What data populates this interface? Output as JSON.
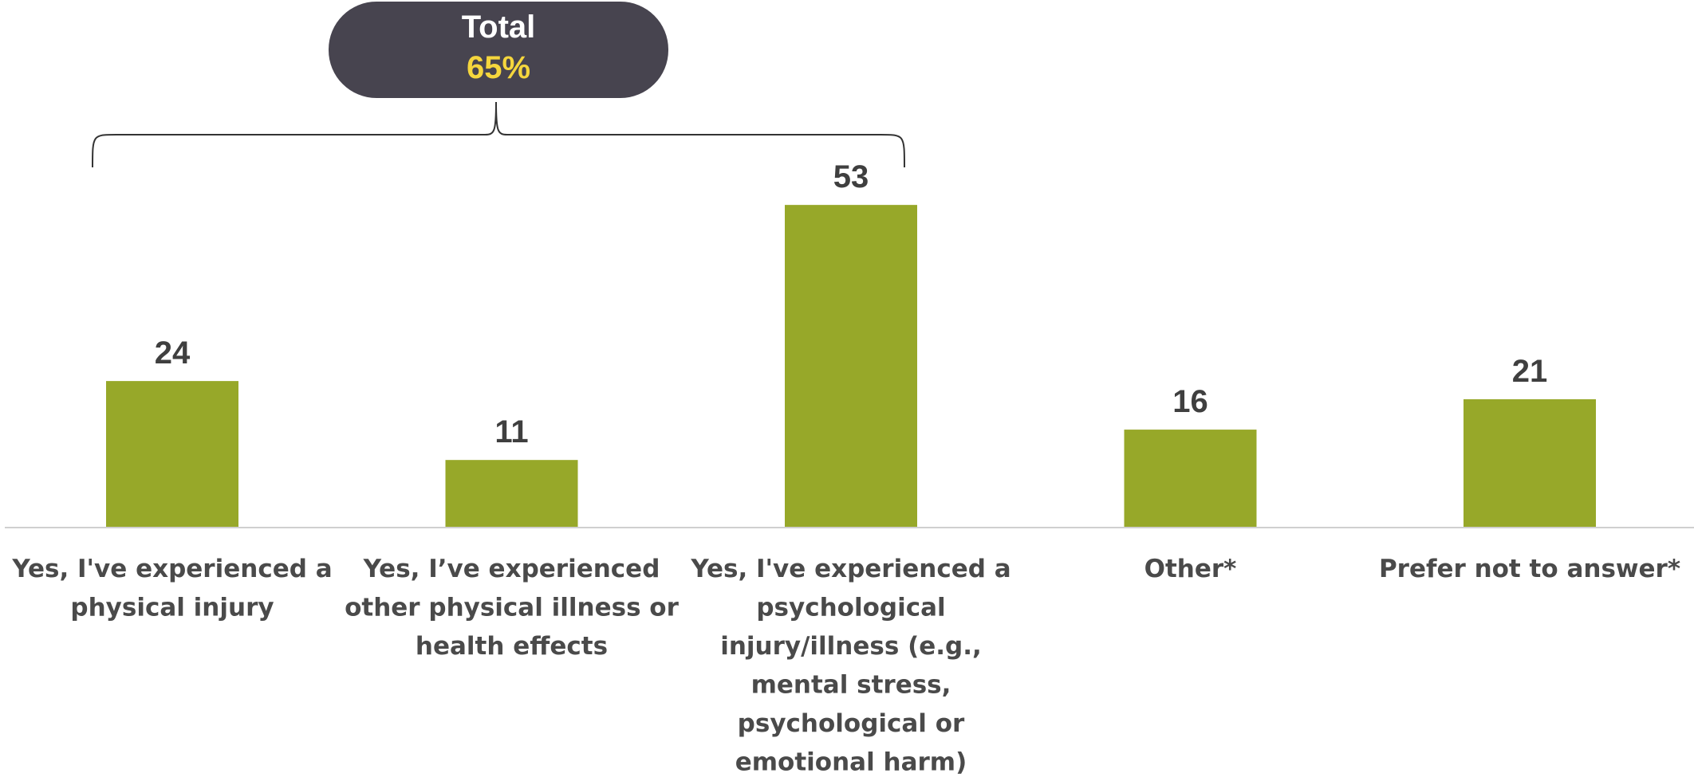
{
  "chart_data": {
    "type": "bar",
    "categories": [
      "Yes, I've experienced a physical injury",
      "Yes, I’ve experienced other physical illness or health effects",
      "Yes, I've experienced a psychological injury/illness (e.g., mental stress, psychological or emotional harm)",
      "Other*",
      "Prefer not to answer*"
    ],
    "category_lines": [
      [
        "Yes, I've experienced a",
        "physical injury"
      ],
      [
        "Yes, I’ve experienced",
        "other physical illness or",
        "health effects"
      ],
      [
        "Yes, I've experienced a",
        "psychological",
        "injury/illness (e.g.,",
        "mental stress,",
        "psychological or",
        "emotional harm)"
      ],
      [
        "Other*"
      ],
      [
        "Prefer not to answer*"
      ]
    ],
    "values": [
      24,
      11,
      53,
      16,
      21
    ],
    "value_labels": [
      "24",
      "11",
      "53",
      "16",
      "21"
    ],
    "ylim": [
      0,
      60
    ],
    "grid": false,
    "legend": "none",
    "title": "",
    "xlabel": "",
    "ylabel": "",
    "bar_color": "#97a829",
    "callout": {
      "title": "Total",
      "value": "65%",
      "spans_categories": [
        0,
        2
      ],
      "background": "#47444f",
      "value_color": "#f5d63d"
    }
  }
}
